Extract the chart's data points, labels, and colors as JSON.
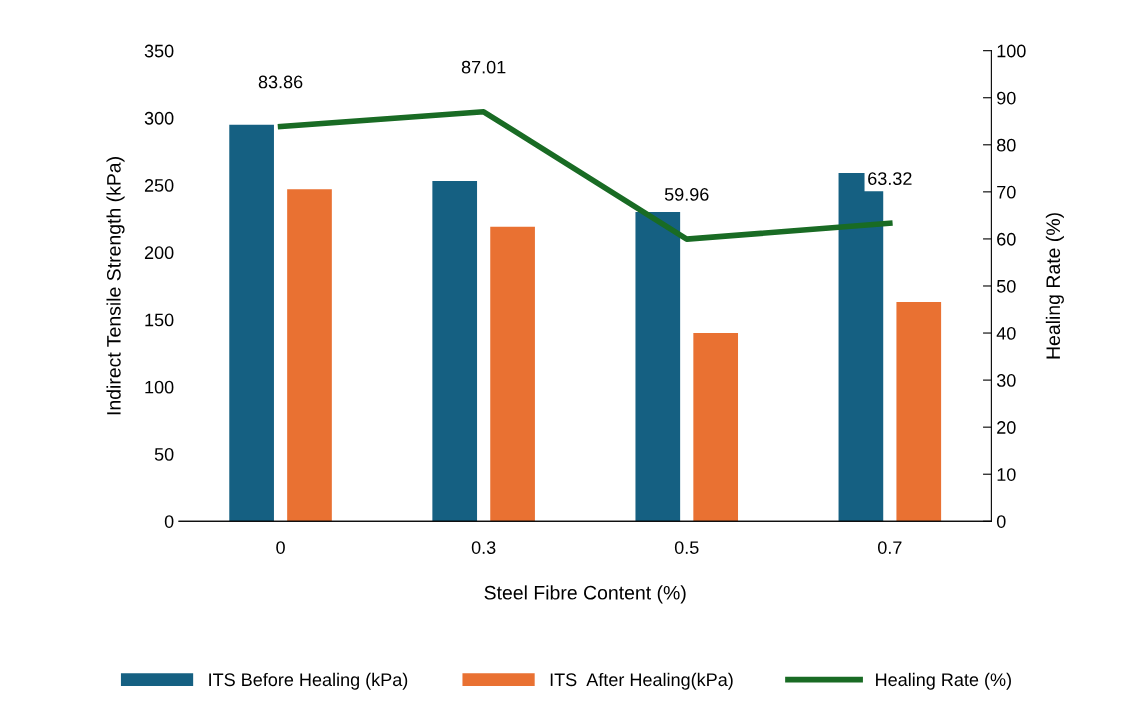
{
  "chart_data": {
    "type": "bar",
    "xlabel": "Steel Fibre Content (%)",
    "ylabel": "Indirect Tensile Strength (kPa)",
    "y2label": "Healing Rate (%)",
    "categories": [
      "0",
      "0.3",
      "0.5",
      "0.7"
    ],
    "series": [
      {
        "name": "ITS Before Healing (kPa)",
        "color": "#156082",
        "values": [
          295,
          253,
          230,
          259
        ]
      },
      {
        "name": "ITS  After Healing(kPa)",
        "color": "#e97132",
        "values": [
          247,
          219,
          140,
          163
        ]
      },
      {
        "name": "Healing Rate (%)",
        "type": "line",
        "axis": "y2",
        "color": "#196b24",
        "values": [
          83.86,
          87.01,
          59.96,
          63.32
        ],
        "value_labels": [
          "83.86",
          "87.01",
          "59.96",
          "63.32"
        ]
      }
    ],
    "ylim": [
      0,
      350
    ],
    "yticks": [
      0,
      50,
      100,
      150,
      200,
      250,
      300,
      350
    ],
    "y2lim": [
      0,
      100
    ],
    "y2ticks": [
      0,
      10,
      20,
      30,
      40,
      50,
      60,
      70,
      80,
      90,
      100
    ],
    "legend": "bottom",
    "grid": false,
    "marker": "none",
    "line_style": "solid"
  }
}
